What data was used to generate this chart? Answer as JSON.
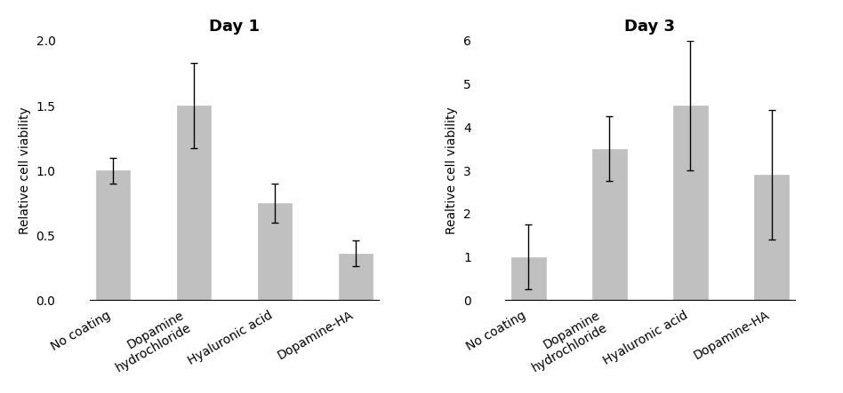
{
  "day1": {
    "title": "Day 1",
    "ylabel": "Relative cell viability",
    "categories": [
      "No coating",
      "Dopamine\nhydrochloride",
      "Hyaluronic acid",
      "Dopamine-HA"
    ],
    "values": [
      1.0,
      1.5,
      0.75,
      0.36
    ],
    "errors": [
      0.1,
      0.33,
      0.15,
      0.1
    ],
    "ylim": [
      0,
      2.0
    ],
    "yticks": [
      0.0,
      0.5,
      1.0,
      1.5,
      2.0
    ],
    "ytick_labels": [
      "0.0",
      "0.5",
      "1.0",
      "1.5",
      "2.0"
    ]
  },
  "day3": {
    "title": "Day 3",
    "ylabel": "Realtive cell viability",
    "categories": [
      "No coating",
      "Dopamine\nhydrochloride",
      "Hyaluronic acid",
      "Dopamine-HA"
    ],
    "values": [
      1.0,
      3.5,
      4.5,
      2.9
    ],
    "errors": [
      0.75,
      0.75,
      1.5,
      1.5
    ],
    "ylim": [
      0,
      6.0
    ],
    "yticks": [
      0,
      1,
      2,
      3,
      4,
      5,
      6
    ],
    "ytick_labels": [
      "0",
      "1",
      "2",
      "3",
      "4",
      "5",
      "6"
    ]
  },
  "bar_color": "#c0c0c0",
  "bar_edgecolor": "#c0c0c0",
  "error_color": "black",
  "error_capsize": 3,
  "error_linewidth": 1.0,
  "bar_width": 0.55,
  "title_fontsize": 13,
  "title_fontweight": "bold",
  "ylabel_fontsize": 10,
  "tick_fontsize": 10,
  "xtick_fontsize": 10,
  "xtick_rotation": 30,
  "background_color": "#ffffff",
  "bar_spacing": 1.3
}
